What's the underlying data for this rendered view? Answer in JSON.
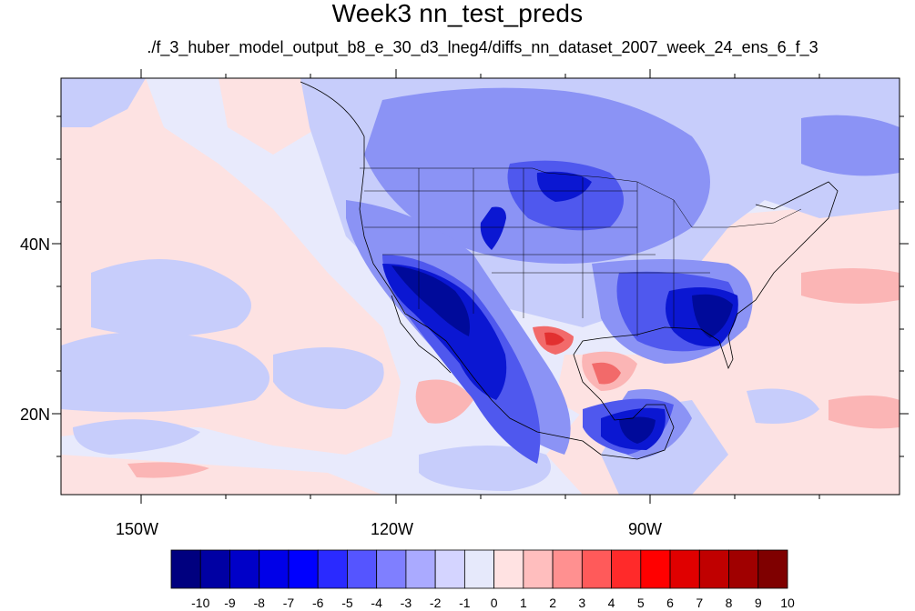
{
  "title": "Week3 nn_test_preds",
  "subtitle": "./f_3_huber_model_output_b8_e_30_d3_lneg4/diffs_nn_dataset_2007_week_24_ens_6_f_3",
  "map": {
    "lon_range": [
      -160,
      -65
    ],
    "lat_range": [
      10,
      59
    ],
    "lon_ticks": [
      "150W",
      "120W",
      "90W"
    ],
    "lat_ticks": [
      "40N",
      "20N"
    ]
  },
  "colorbar": {
    "labels": [
      "-10",
      "-9",
      "-8",
      "-7",
      "-6",
      "-5",
      "-4",
      "-3",
      "-2",
      "-1",
      "0",
      "1",
      "2",
      "3",
      "4",
      "5",
      "6",
      "7",
      "8",
      "9",
      "10"
    ],
    "colors": [
      "#00007f",
      "#0000a3",
      "#0000c8",
      "#0000e8",
      "#0000ff",
      "#2a2aff",
      "#5555ff",
      "#7f7fff",
      "#aaaaff",
      "#d4d4ff",
      "#e6e9fb",
      "#ffe2e2",
      "#ffbebe",
      "#ff9090",
      "#ff5a5a",
      "#ff2a2a",
      "#ff0000",
      "#e00000",
      "#c00000",
      "#a00000",
      "#7f0000"
    ]
  },
  "colors": {
    "ocean_base": "#e8eafc",
    "pink": "#fde2e2",
    "light_blue": "#c7cdfb",
    "mid_blue": "#8b93f5",
    "blue": "#4f58ee",
    "dark_blue": "#0b17d2",
    "navy": "#000a9a",
    "salmon": "#fbb5b5",
    "red": "#f26a6a",
    "dark_red": "#e23030"
  }
}
